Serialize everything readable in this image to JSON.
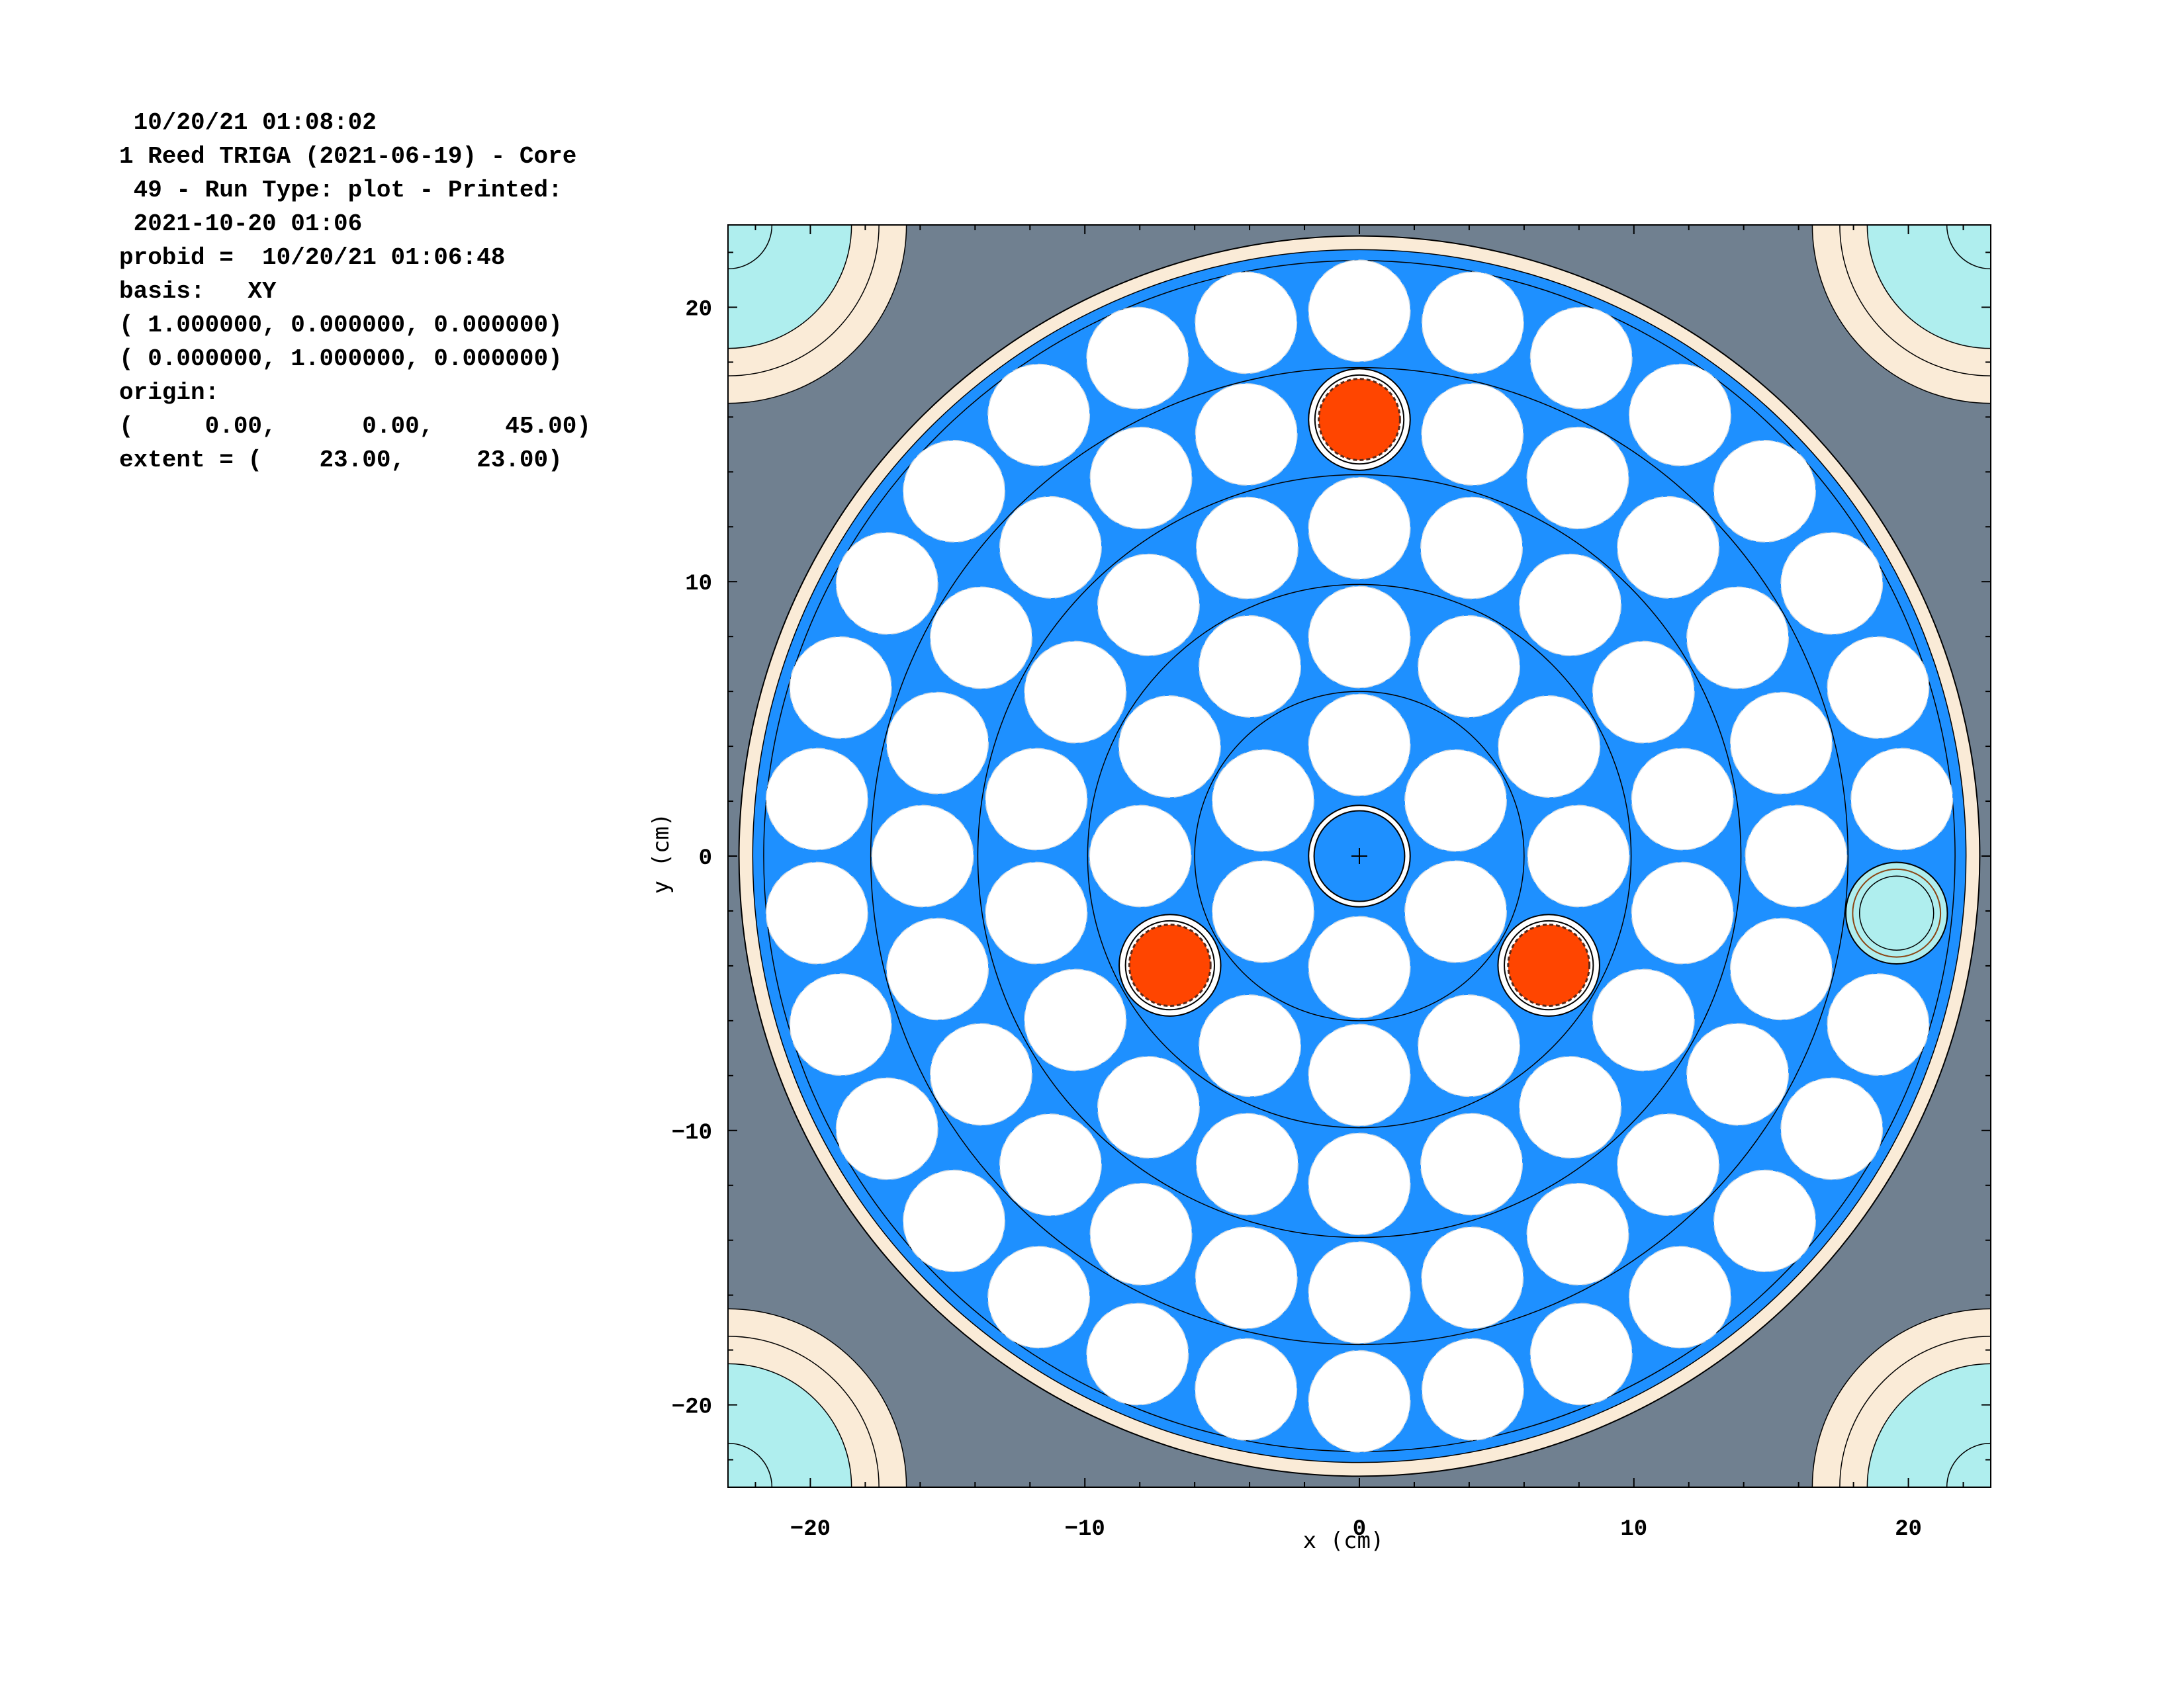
{
  "header": {
    "lines": [
      " 10/20/21 01:08:02",
      "1 Reed TRIGA (2021-06-19) - Core",
      " 49 - Run Type: plot - Printed:",
      " 2021-10-20 01:06",
      "probid =  10/20/21 01:06:48",
      "basis:   XY",
      "( 1.000000, 0.000000, 0.000000)",
      "( 0.000000, 1.000000, 0.000000)",
      "origin:",
      "(     0.00,      0.00,     45.00)",
      "extent = (    23.00,     23.00)"
    ]
  },
  "plot": {
    "xlabel": "x (cm)",
    "ylabel": "y (cm)",
    "xlim": [
      -23,
      23
    ],
    "ylim": [
      -23,
      23
    ],
    "x_ticks": [
      -20,
      -10,
      0,
      10,
      20
    ],
    "y_ticks": [
      20,
      10,
      0,
      -10,
      -20
    ],
    "x_tick_labels": [
      "−20",
      "−10",
      "0",
      "10",
      "20"
    ],
    "y_tick_labels": [
      "20",
      "10",
      "0",
      "−10",
      "−20"
    ],
    "colors": {
      "background": "#708090",
      "water": "#1e90ff",
      "reflector_ring": "#faebd7",
      "fuel_cell": "#ffffff",
      "control_rod": "#ff4500",
      "corner_region": "#afeeee",
      "source_element": "#afeeee",
      "outline": "#000000"
    },
    "core": {
      "ring_boundaries_cm": [
        6.0,
        9.9,
        13.9,
        17.8,
        21.7
      ],
      "reflector_inner_radius_cm": 22.1,
      "reflector_outer_radius_cm": 22.6,
      "fuel_radius_cm": 1.85,
      "rings": [
        {
          "radius_cm": 4.05,
          "count": 6,
          "start_deg": 90
        },
        {
          "radius_cm": 7.98,
          "count": 12,
          "start_deg": 90
        },
        {
          "radius_cm": 11.95,
          "count": 18,
          "start_deg": 90
        },
        {
          "radius_cm": 15.91,
          "count": 24,
          "start_deg": 90
        },
        {
          "radius_cm": 19.87,
          "count": 30,
          "start_deg": 90
        }
      ],
      "central_thimble": {
        "x": 0,
        "y": 0
      },
      "control_rods": [
        {
          "x": 0,
          "y": 15.91
        },
        {
          "x": -6.9,
          "y": -3.98
        },
        {
          "x": 6.9,
          "y": -3.98
        }
      ],
      "source_element": {
        "x": 19.57,
        "y": -2.08
      }
    }
  }
}
